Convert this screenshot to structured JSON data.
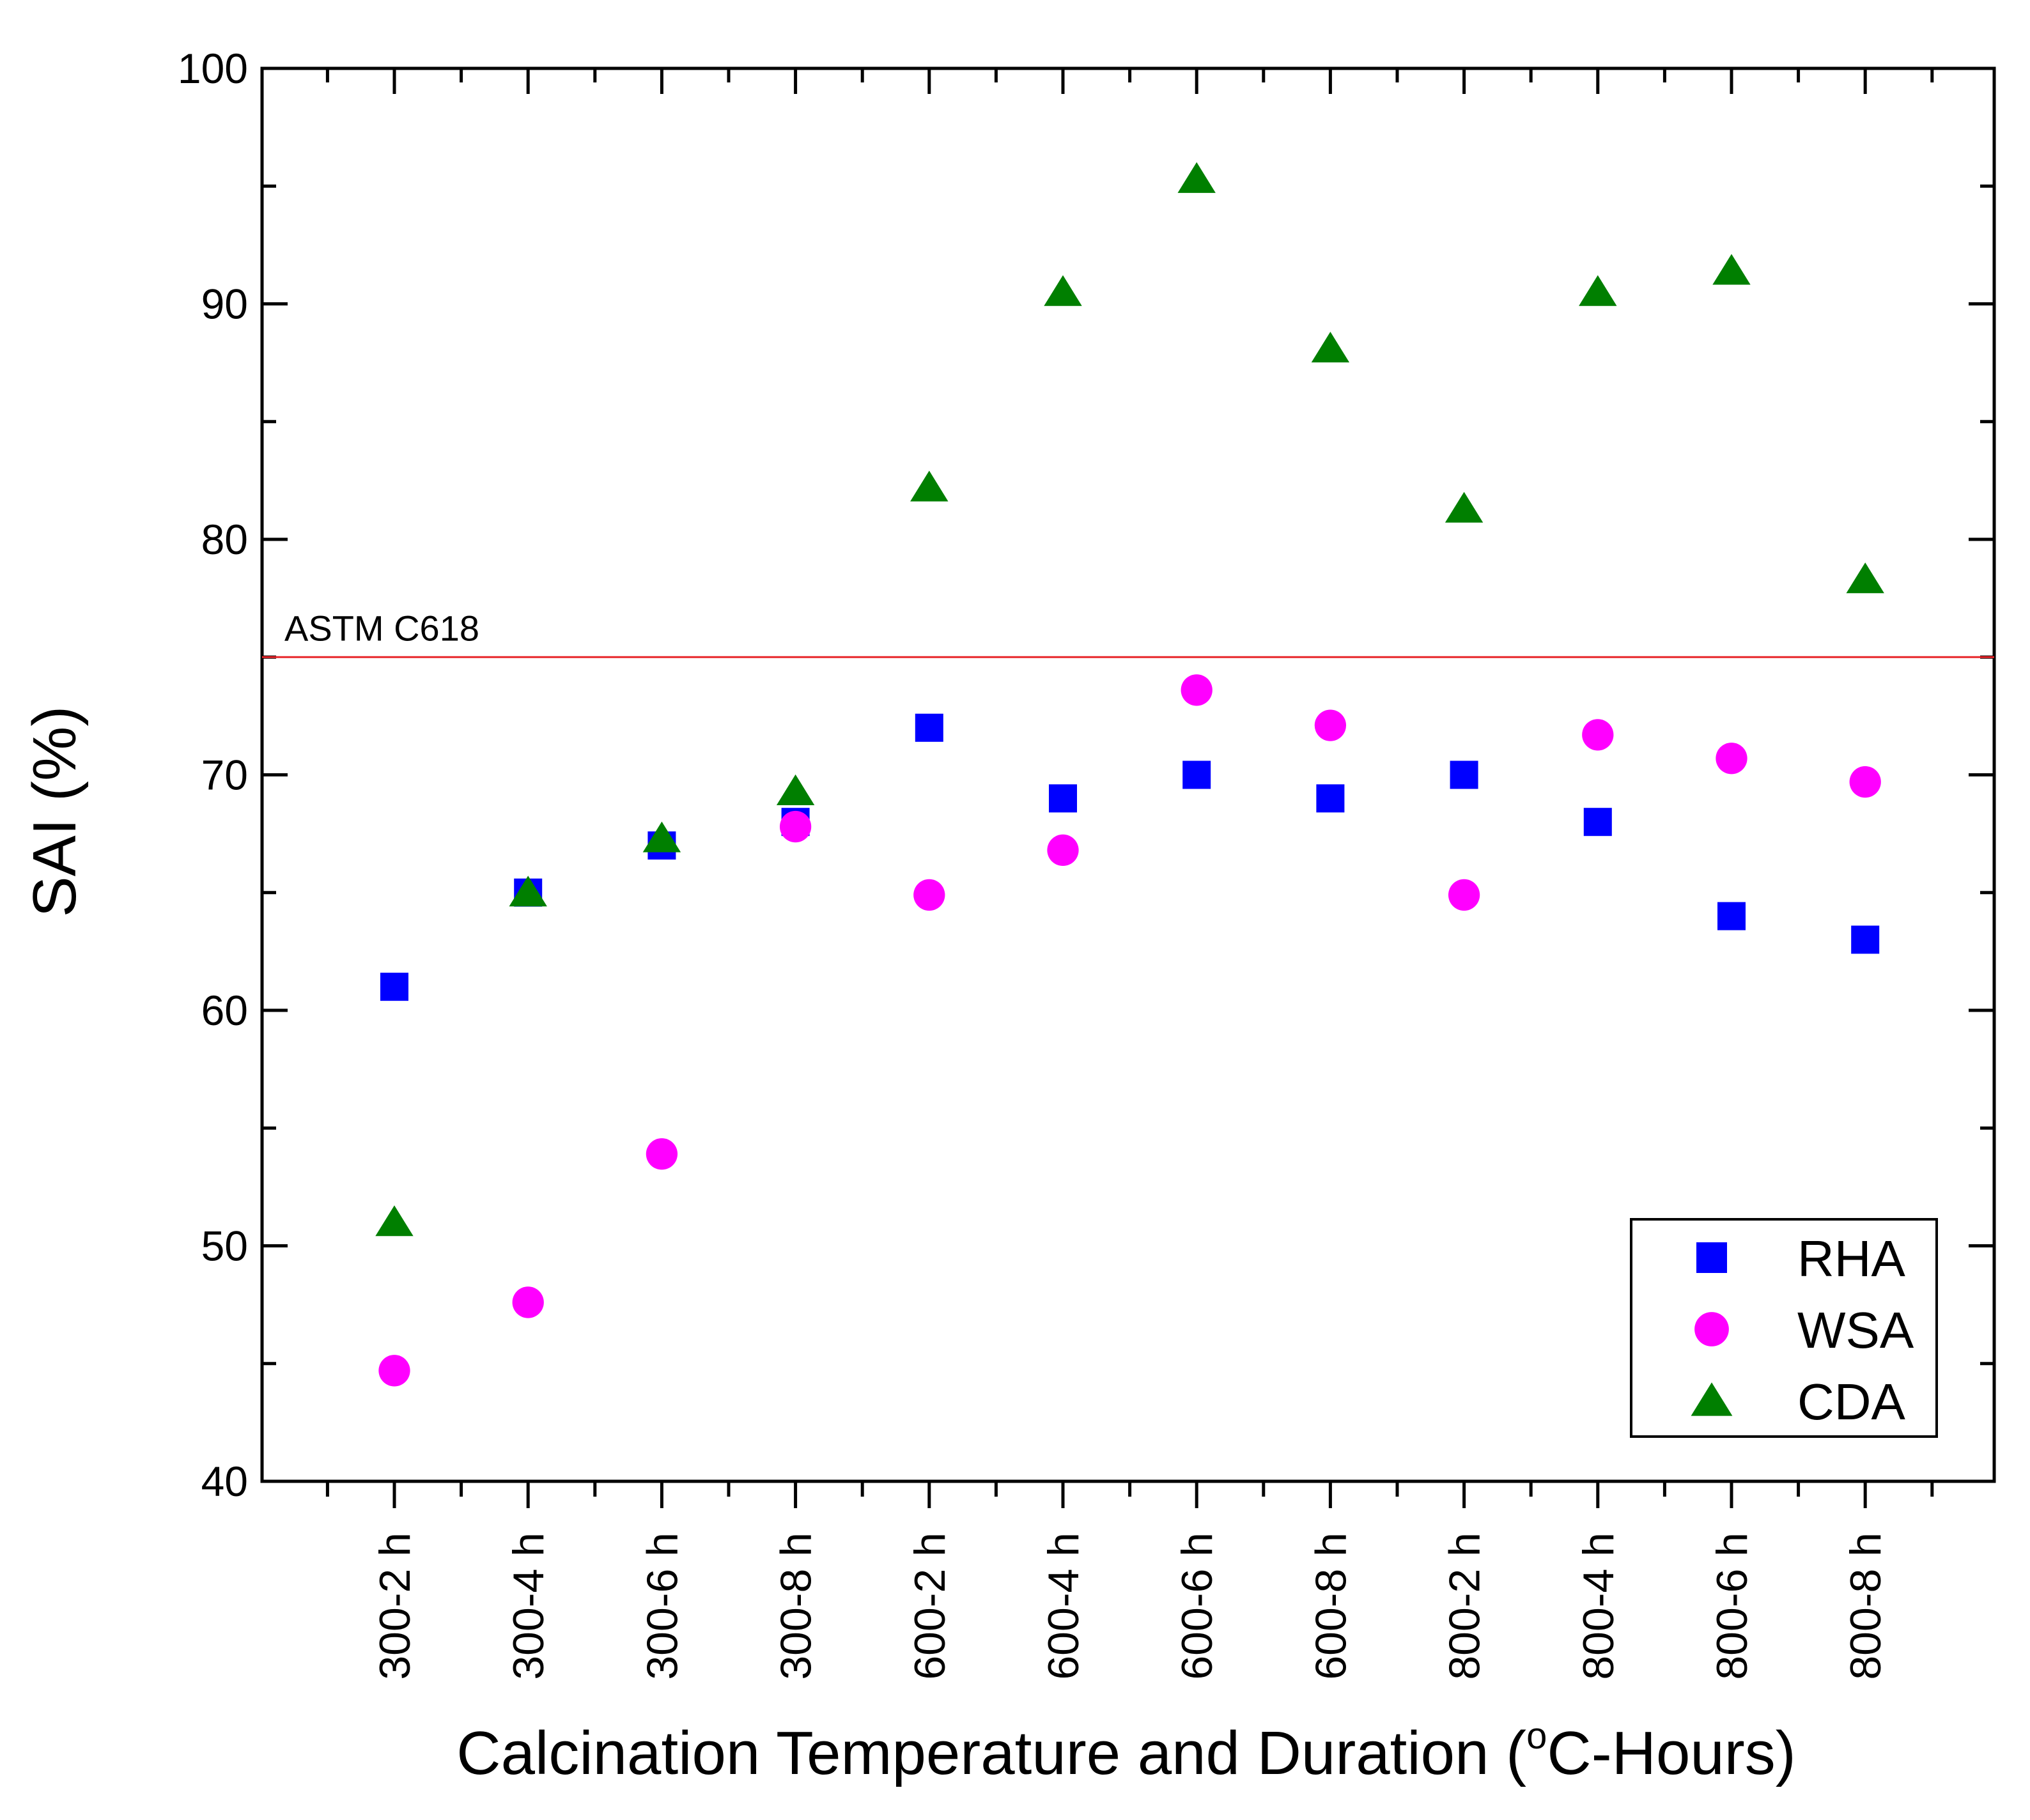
{
  "chart_data": {
    "type": "scatter",
    "title": "",
    "xlabel_main": "Calcination Temperature and Duration (",
    "xlabel_sup": "o",
    "xlabel_end": "C-Hours)",
    "ylabel": "SAI (%)",
    "ylim": [
      40,
      100
    ],
    "yticks": [
      40,
      50,
      60,
      70,
      80,
      90,
      100
    ],
    "categories": [
      "300-2 h",
      "300-4 h",
      "300-6 h",
      "300-8 h",
      "600-2 h",
      "600-4 h",
      "600-6 h",
      "600-8 h",
      "800-2 h",
      "800-4 h",
      "800-6 h",
      "800-8 h"
    ],
    "series": [
      {
        "name": "RHA",
        "marker": "square",
        "color": "#0000ff",
        "values": [
          61,
          65,
          67,
          68,
          72,
          69,
          70,
          69,
          70,
          68,
          64,
          63
        ]
      },
      {
        "name": "WSA",
        "marker": "circle",
        "color": "#ff00ff",
        "values": [
          44.7,
          47.6,
          53.9,
          67.8,
          64.9,
          66.8,
          73.6,
          72.1,
          64.9,
          71.7,
          70.7,
          69.7
        ]
      },
      {
        "name": "CDA",
        "marker": "triangle",
        "color": "#007f00",
        "values": [
          51,
          65,
          67.3,
          69.3,
          82.2,
          90.5,
          95.3,
          88.1,
          81.3,
          90.5,
          91.4,
          78.3
        ]
      }
    ],
    "reference_line": {
      "label": "ASTM C618",
      "value": 75,
      "color": "#e8262a"
    },
    "legend_position": "bottom-right",
    "grid": false
  }
}
